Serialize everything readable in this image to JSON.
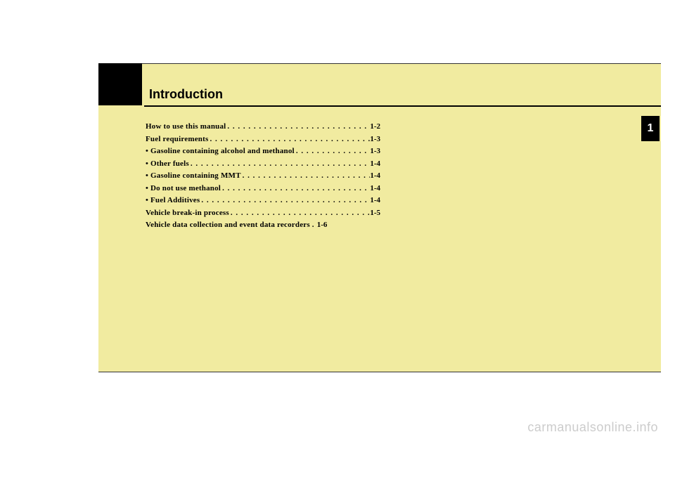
{
  "chapter": {
    "title": "Introduction",
    "tab_number": "1"
  },
  "toc": [
    {
      "level": "main",
      "label": "How to use this manual",
      "page": "1-2"
    },
    {
      "level": "main",
      "label": "Fuel requirements",
      "page": "1-3"
    },
    {
      "level": "sub",
      "label": "• Gasoline containing alcohol and methanol",
      "page": "1-3"
    },
    {
      "level": "sub",
      "label": "• Other fuels",
      "page": "1-4"
    },
    {
      "level": "sub",
      "label": "• Gasoline containing MMT",
      "page": "1-4"
    },
    {
      "level": "sub",
      "label": "• Do not use methanol",
      "page": "1-4"
    },
    {
      "level": "sub",
      "label": "• Fuel Additives",
      "page": "1-4"
    },
    {
      "level": "main",
      "label": "Vehicle break-in process",
      "page": "1-5"
    },
    {
      "level": "main",
      "label": "Vehicle data collection and event data recorders .",
      "page": "1-6",
      "nodots": true
    }
  ],
  "watermark": "carmanualsonline.info",
  "colors": {
    "page_bg": "#f1eba0",
    "body_bg": "#ffffff",
    "black": "#000000",
    "rule": "#333333",
    "watermark": "#cccccc"
  }
}
